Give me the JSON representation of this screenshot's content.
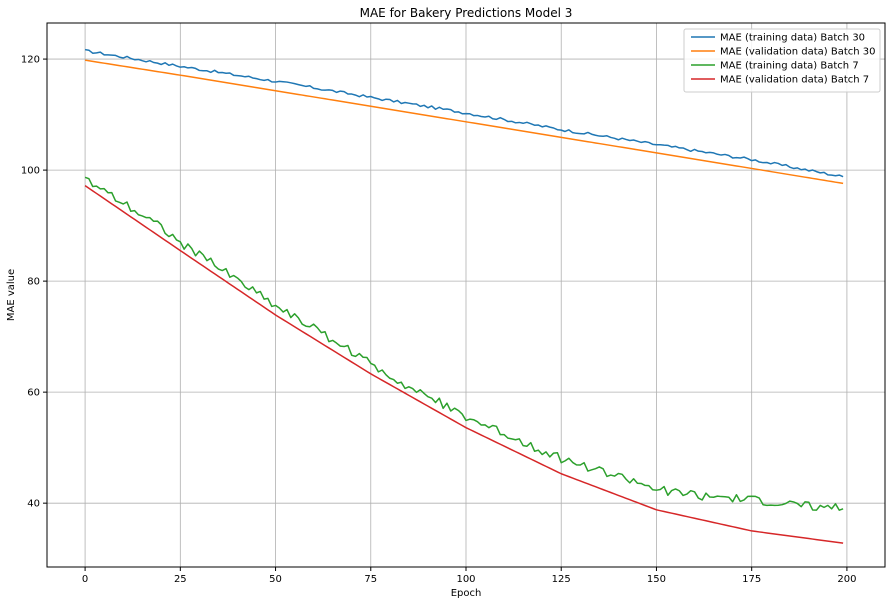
{
  "chart_data": {
    "type": "line",
    "title": "MAE for Bakery Predictions Model 3",
    "xlabel": "Epoch",
    "ylabel": "MAE value",
    "xlim": [
      -10,
      210
    ],
    "ylim": [
      28.5,
      126.5
    ],
    "xticks": [
      0,
      25,
      50,
      75,
      100,
      125,
      150,
      175,
      200
    ],
    "yticks": [
      40,
      60,
      80,
      100,
      120
    ],
    "grid": true,
    "legend_position": "top-right",
    "x_range": [
      0,
      199
    ],
    "series": [
      {
        "name": "MAE (training data) Batch 30",
        "color": "#1f77b4",
        "points": [
          [
            0,
            121.5
          ],
          [
            25,
            118.7
          ],
          [
            50,
            116.0
          ],
          [
            75,
            113.1
          ],
          [
            100,
            110.3
          ],
          [
            125,
            107.3
          ],
          [
            150,
            104.6
          ],
          [
            175,
            101.9
          ],
          [
            199,
            98.8
          ]
        ],
        "noise": 0.25
      },
      {
        "name": "MAE (validation data) Batch 30",
        "color": "#ff7f0e",
        "points": [
          [
            0,
            119.8
          ],
          [
            25,
            117.1
          ],
          [
            50,
            114.3
          ],
          [
            75,
            111.5
          ],
          [
            100,
            108.7
          ],
          [
            125,
            105.9
          ],
          [
            150,
            103.1
          ],
          [
            175,
            100.3
          ],
          [
            199,
            97.6
          ]
        ],
        "noise": 0
      },
      {
        "name": "MAE (training data) Batch 7",
        "color": "#2ca02c",
        "points": [
          [
            0,
            98.5
          ],
          [
            10,
            94.2
          ],
          [
            20,
            89.8
          ],
          [
            25,
            87.0
          ],
          [
            35,
            82.5
          ],
          [
            45,
            78.0
          ],
          [
            50,
            75.6
          ],
          [
            60,
            71.5
          ],
          [
            70,
            67.3
          ],
          [
            75,
            65.0
          ],
          [
            85,
            61.0
          ],
          [
            95,
            57.5
          ],
          [
            100,
            55.5
          ],
          [
            110,
            52.5
          ],
          [
            120,
            49.5
          ],
          [
            125,
            48.0
          ],
          [
            135,
            45.8
          ],
          [
            145,
            43.8
          ],
          [
            150,
            42.5
          ],
          [
            160,
            41.5
          ],
          [
            170,
            40.8
          ],
          [
            175,
            40.5
          ],
          [
            185,
            39.8
          ],
          [
            190,
            39.6
          ],
          [
            199,
            39.0
          ]
        ],
        "noise": 0.8
      },
      {
        "name": "MAE (validation data) Batch 7",
        "color": "#d62728",
        "points": [
          [
            0,
            97.2
          ],
          [
            25,
            85.5
          ],
          [
            50,
            73.9
          ],
          [
            75,
            63.3
          ],
          [
            100,
            53.6
          ],
          [
            125,
            45.3
          ],
          [
            150,
            38.8
          ],
          [
            175,
            35.0
          ],
          [
            199,
            32.8
          ]
        ],
        "noise": 0
      }
    ]
  }
}
